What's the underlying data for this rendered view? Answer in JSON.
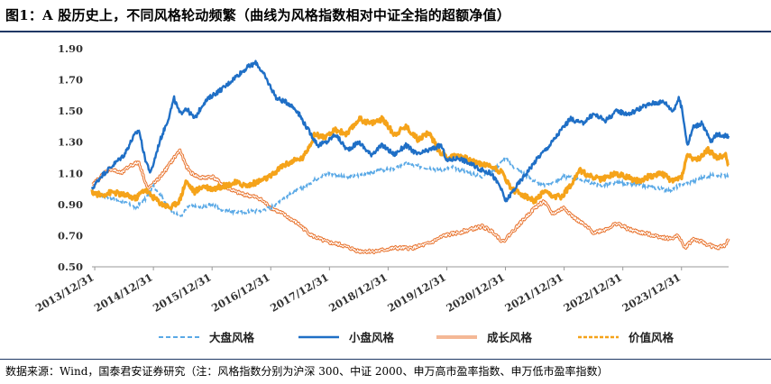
{
  "title": "图1：A 股历史上，不同风格轮动频繁（曲线为风格指数相对中证全指的超额净值）",
  "source": "数据来源：Wind，国泰君安证券研究（注：风格指数分别为沪深 300、中证 2000、申万高市盈率指数、申万低市盈率指数）",
  "chart_data": {
    "type": "line",
    "ylim": [
      0.5,
      1.9
    ],
    "yticks": [
      "0.50",
      "0.70",
      "0.90",
      "1.10",
      "1.30",
      "1.50",
      "1.70",
      "1.90"
    ],
    "x_categories": [
      "2013/12/31",
      "2014/12/31",
      "2015/12/31",
      "2016/12/31",
      "2017/12/31",
      "2018/12/31",
      "2019/12/31",
      "2020/12/31",
      "2021/12/31",
      "2022/12/31",
      "2023/12/31"
    ],
    "xlim": [
      2013.95,
      2024.8
    ],
    "legend": "bottom",
    "series": [
      {
        "name": "大盘风格",
        "color": "#5aa9e6",
        "style": "dashed",
        "points": [
          [
            2013.95,
            0.98
          ],
          [
            2014.2,
            0.95
          ],
          [
            2014.45,
            0.92
          ],
          [
            2014.7,
            0.88
          ],
          [
            2014.85,
            0.93
          ],
          [
            2015.0,
            1.02
          ],
          [
            2015.1,
            0.97
          ],
          [
            2015.3,
            0.86
          ],
          [
            2015.45,
            0.82
          ],
          [
            2015.6,
            0.89
          ],
          [
            2015.8,
            0.88
          ],
          [
            2016.0,
            0.9
          ],
          [
            2016.2,
            0.86
          ],
          [
            2016.5,
            0.85
          ],
          [
            2016.8,
            0.86
          ],
          [
            2017.0,
            0.88
          ],
          [
            2017.2,
            0.94
          ],
          [
            2017.5,
            1.0
          ],
          [
            2017.8,
            1.07
          ],
          [
            2018.0,
            1.1
          ],
          [
            2018.3,
            1.07
          ],
          [
            2018.6,
            1.1
          ],
          [
            2018.9,
            1.12
          ],
          [
            2019.1,
            1.13
          ],
          [
            2019.3,
            1.16
          ],
          [
            2019.6,
            1.14
          ],
          [
            2019.9,
            1.12
          ],
          [
            2020.1,
            1.14
          ],
          [
            2020.4,
            1.1
          ],
          [
            2020.6,
            1.08
          ],
          [
            2020.8,
            1.12
          ],
          [
            2021.0,
            1.2
          ],
          [
            2021.1,
            1.15
          ],
          [
            2021.3,
            1.1
          ],
          [
            2021.6,
            1.02
          ],
          [
            2021.8,
            1.04
          ],
          [
            2022.0,
            1.08
          ],
          [
            2022.3,
            1.06
          ],
          [
            2022.6,
            1.02
          ],
          [
            2022.9,
            1.04
          ],
          [
            2023.2,
            1.03
          ],
          [
            2023.5,
            1.01
          ],
          [
            2023.8,
            0.99
          ],
          [
            2024.0,
            1.03
          ],
          [
            2024.2,
            1.05
          ],
          [
            2024.4,
            1.08
          ],
          [
            2024.6,
            1.09
          ],
          [
            2024.8,
            1.08
          ]
        ]
      },
      {
        "name": "小盘风格",
        "color": "#1f6fc6",
        "style": "solid",
        "points": [
          [
            2013.95,
            1.0
          ],
          [
            2014.1,
            1.08
          ],
          [
            2014.3,
            1.15
          ],
          [
            2014.5,
            1.22
          ],
          [
            2014.65,
            1.33
          ],
          [
            2014.75,
            1.38
          ],
          [
            2014.85,
            1.2
          ],
          [
            2014.95,
            1.1
          ],
          [
            2015.1,
            1.3
          ],
          [
            2015.25,
            1.45
          ],
          [
            2015.35,
            1.58
          ],
          [
            2015.45,
            1.48
          ],
          [
            2015.55,
            1.52
          ],
          [
            2015.7,
            1.45
          ],
          [
            2015.85,
            1.55
          ],
          [
            2016.0,
            1.6
          ],
          [
            2016.2,
            1.65
          ],
          [
            2016.4,
            1.72
          ],
          [
            2016.6,
            1.78
          ],
          [
            2016.75,
            1.81
          ],
          [
            2016.9,
            1.72
          ],
          [
            2017.1,
            1.58
          ],
          [
            2017.3,
            1.55
          ],
          [
            2017.45,
            1.5
          ],
          [
            2017.6,
            1.4
          ],
          [
            2017.8,
            1.28
          ],
          [
            2017.95,
            1.3
          ],
          [
            2018.1,
            1.35
          ],
          [
            2018.3,
            1.25
          ],
          [
            2018.5,
            1.3
          ],
          [
            2018.7,
            1.22
          ],
          [
            2018.9,
            1.28
          ],
          [
            2019.1,
            1.22
          ],
          [
            2019.3,
            1.28
          ],
          [
            2019.5,
            1.22
          ],
          [
            2019.7,
            1.25
          ],
          [
            2019.9,
            1.28
          ],
          [
            2020.0,
            1.18
          ],
          [
            2020.2,
            1.2
          ],
          [
            2020.4,
            1.16
          ],
          [
            2020.6,
            1.12
          ],
          [
            2020.75,
            1.1
          ],
          [
            2020.9,
            1.02
          ],
          [
            2021.0,
            0.92
          ],
          [
            2021.15,
            1.0
          ],
          [
            2021.35,
            1.1
          ],
          [
            2021.55,
            1.2
          ],
          [
            2021.75,
            1.28
          ],
          [
            2021.95,
            1.38
          ],
          [
            2022.1,
            1.45
          ],
          [
            2022.3,
            1.42
          ],
          [
            2022.5,
            1.48
          ],
          [
            2022.7,
            1.44
          ],
          [
            2022.9,
            1.5
          ],
          [
            2023.1,
            1.48
          ],
          [
            2023.3,
            1.52
          ],
          [
            2023.5,
            1.55
          ],
          [
            2023.7,
            1.56
          ],
          [
            2023.85,
            1.5
          ],
          [
            2023.95,
            1.58
          ],
          [
            2024.0,
            1.52
          ],
          [
            2024.1,
            1.28
          ],
          [
            2024.2,
            1.4
          ],
          [
            2024.35,
            1.42
          ],
          [
            2024.5,
            1.3
          ],
          [
            2024.6,
            1.35
          ],
          [
            2024.8,
            1.34
          ]
        ]
      },
      {
        "name": "成长风格",
        "color": "#e8722c",
        "style": "double",
        "points": [
          [
            2013.95,
            1.02
          ],
          [
            2014.1,
            1.08
          ],
          [
            2014.25,
            1.13
          ],
          [
            2014.45,
            1.1
          ],
          [
            2014.6,
            1.15
          ],
          [
            2014.75,
            1.17
          ],
          [
            2014.9,
            1.0
          ],
          [
            2015.05,
            1.05
          ],
          [
            2015.2,
            1.12
          ],
          [
            2015.35,
            1.2
          ],
          [
            2015.45,
            1.25
          ],
          [
            2015.55,
            1.15
          ],
          [
            2015.65,
            1.1
          ],
          [
            2015.8,
            1.07
          ],
          [
            2016.0,
            1.08
          ],
          [
            2016.2,
            1.02
          ],
          [
            2016.4,
            0.98
          ],
          [
            2016.6,
            0.96
          ],
          [
            2016.8,
            0.94
          ],
          [
            2017.0,
            0.88
          ],
          [
            2017.2,
            0.84
          ],
          [
            2017.45,
            0.78
          ],
          [
            2017.7,
            0.7
          ],
          [
            2017.95,
            0.66
          ],
          [
            2018.2,
            0.64
          ],
          [
            2018.5,
            0.6
          ],
          [
            2018.8,
            0.6
          ],
          [
            2019.1,
            0.62
          ],
          [
            2019.4,
            0.62
          ],
          [
            2019.7,
            0.65
          ],
          [
            2019.95,
            0.7
          ],
          [
            2020.2,
            0.72
          ],
          [
            2020.4,
            0.74
          ],
          [
            2020.6,
            0.76
          ],
          [
            2020.8,
            0.72
          ],
          [
            2020.95,
            0.66
          ],
          [
            2021.1,
            0.72
          ],
          [
            2021.3,
            0.8
          ],
          [
            2021.5,
            0.88
          ],
          [
            2021.65,
            0.92
          ],
          [
            2021.8,
            0.84
          ],
          [
            2022.0,
            0.88
          ],
          [
            2022.15,
            0.82
          ],
          [
            2022.3,
            0.78
          ],
          [
            2022.5,
            0.72
          ],
          [
            2022.7,
            0.74
          ],
          [
            2022.9,
            0.78
          ],
          [
            2023.1,
            0.74
          ],
          [
            2023.3,
            0.72
          ],
          [
            2023.55,
            0.7
          ],
          [
            2023.8,
            0.68
          ],
          [
            2023.95,
            0.7
          ],
          [
            2024.05,
            0.62
          ],
          [
            2024.2,
            0.68
          ],
          [
            2024.4,
            0.65
          ],
          [
            2024.6,
            0.62
          ],
          [
            2024.75,
            0.64
          ],
          [
            2024.8,
            0.68
          ]
        ]
      },
      {
        "name": "价值风格",
        "color": "#f5a31a",
        "style": "thick",
        "points": [
          [
            2013.95,
            0.98
          ],
          [
            2014.1,
            0.96
          ],
          [
            2014.3,
            0.98
          ],
          [
            2014.5,
            0.96
          ],
          [
            2014.7,
            0.94
          ],
          [
            2014.85,
            1.0
          ],
          [
            2014.95,
            0.96
          ],
          [
            2015.15,
            0.9
          ],
          [
            2015.3,
            0.88
          ],
          [
            2015.45,
            0.93
          ],
          [
            2015.55,
            1.05
          ],
          [
            2015.7,
            0.98
          ],
          [
            2015.85,
            1.02
          ],
          [
            2016.0,
            1.0
          ],
          [
            2016.2,
            1.02
          ],
          [
            2016.4,
            1.04
          ],
          [
            2016.6,
            1.02
          ],
          [
            2016.8,
            1.05
          ],
          [
            2017.0,
            1.08
          ],
          [
            2017.2,
            1.15
          ],
          [
            2017.4,
            1.18
          ],
          [
            2017.55,
            1.2
          ],
          [
            2017.75,
            1.35
          ],
          [
            2017.95,
            1.33
          ],
          [
            2018.1,
            1.38
          ],
          [
            2018.3,
            1.35
          ],
          [
            2018.5,
            1.45
          ],
          [
            2018.7,
            1.42
          ],
          [
            2018.9,
            1.45
          ],
          [
            2019.1,
            1.35
          ],
          [
            2019.3,
            1.4
          ],
          [
            2019.5,
            1.32
          ],
          [
            2019.7,
            1.36
          ],
          [
            2019.85,
            1.25
          ],
          [
            2020.0,
            1.2
          ],
          [
            2020.2,
            1.22
          ],
          [
            2020.4,
            1.18
          ],
          [
            2020.6,
            1.16
          ],
          [
            2020.8,
            1.14
          ],
          [
            2020.95,
            1.1
          ],
          [
            2021.1,
            1.0
          ],
          [
            2021.3,
            0.96
          ],
          [
            2021.5,
            0.92
          ],
          [
            2021.65,
            0.98
          ],
          [
            2021.8,
            0.95
          ],
          [
            2021.95,
            0.95
          ],
          [
            2022.1,
            1.02
          ],
          [
            2022.25,
            1.12
          ],
          [
            2022.45,
            1.08
          ],
          [
            2022.65,
            1.06
          ],
          [
            2022.85,
            1.1
          ],
          [
            2023.05,
            1.08
          ],
          [
            2023.25,
            1.05
          ],
          [
            2023.45,
            1.08
          ],
          [
            2023.65,
            1.1
          ],
          [
            2023.85,
            1.05
          ],
          [
            2024.0,
            1.08
          ],
          [
            2024.1,
            1.22
          ],
          [
            2024.25,
            1.18
          ],
          [
            2024.45,
            1.25
          ],
          [
            2024.6,
            1.2
          ],
          [
            2024.75,
            1.22
          ],
          [
            2024.8,
            1.15
          ]
        ]
      }
    ]
  }
}
